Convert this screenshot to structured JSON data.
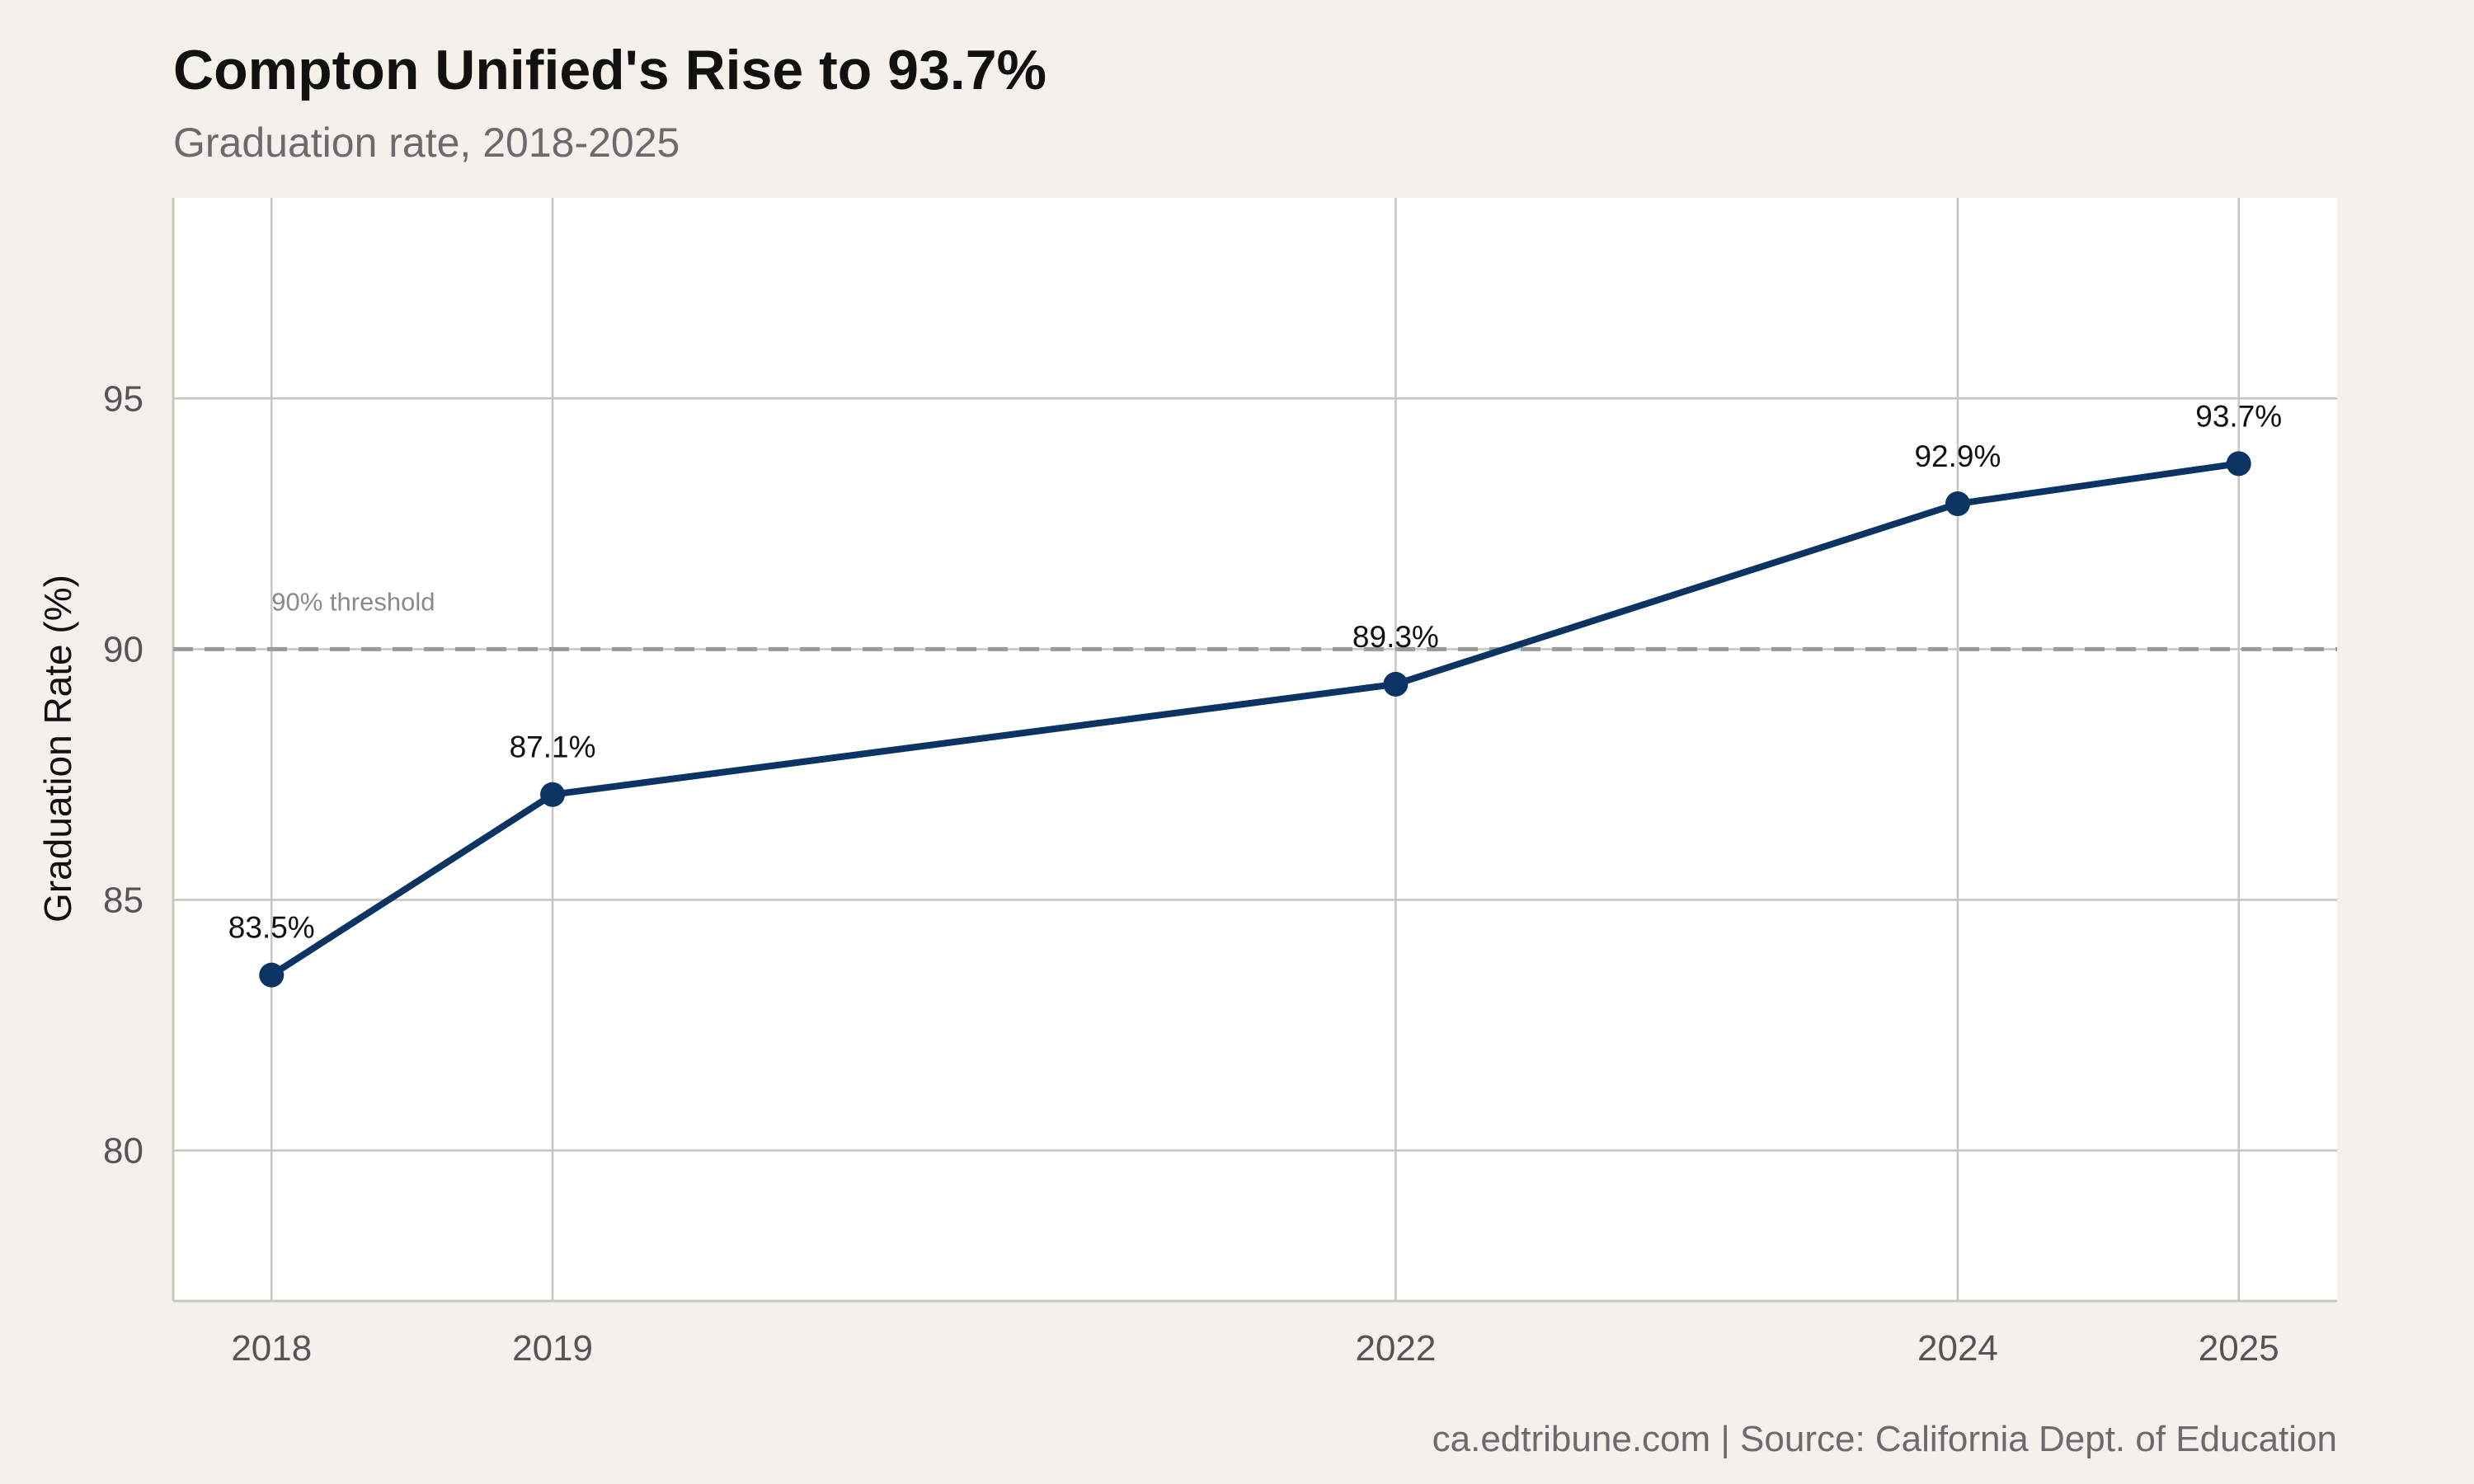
{
  "chart_data": {
    "type": "line",
    "title": "Compton Unified's Rise to 93.7%",
    "subtitle": "Graduation rate, 2018-2025",
    "xlabel": "",
    "ylabel": "Graduation Rate (%)",
    "x": [
      2018,
      2019,
      2022,
      2024,
      2025
    ],
    "x_tick_labels": [
      "2018",
      "2019",
      "2022",
      "2024",
      "2025"
    ],
    "xlim": [
      2017.65,
      2025.35
    ],
    "ylim": [
      77,
      99
    ],
    "y_ticks": [
      80,
      85,
      90,
      95
    ],
    "y_tick_labels": [
      "80",
      "85",
      "90",
      "95"
    ],
    "series": [
      {
        "values": [
          83.5,
          87.1,
          89.3,
          92.9,
          93.7
        ],
        "labels": [
          "83.5%",
          "87.1%",
          "89.3%",
          "92.9%",
          "93.7%"
        ]
      }
    ],
    "reference_line": {
      "y": 90,
      "label": "90% threshold"
    },
    "grid": true,
    "caption": "ca.edtribune.com | Source: California Dept. of Education",
    "colors": {
      "line": "#0b3463",
      "reference": "#9a9a9a",
      "grid": "#c8c6c0",
      "panel": "#ffffff",
      "background": "#f4f1ec"
    }
  }
}
